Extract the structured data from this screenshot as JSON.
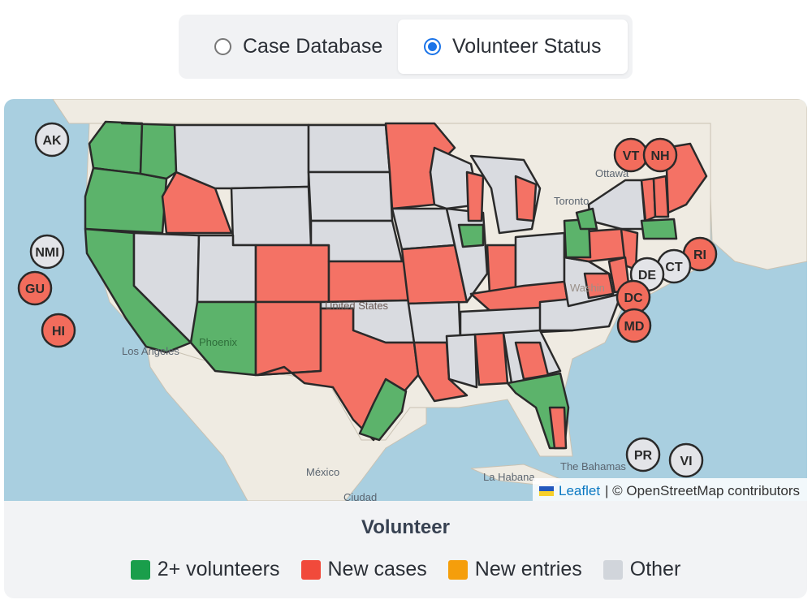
{
  "toggle": {
    "options": [
      {
        "label": "Case Database",
        "selected": false
      },
      {
        "label": "Volunteer Status",
        "selected": true
      }
    ]
  },
  "map": {
    "places": {
      "ottawa": "Ottawa",
      "toronto": "Toronto",
      "phoenix": "Phoenix",
      "losangeles": "Los Angeles",
      "unitedstates": "United States",
      "washington": "Washin",
      "mexico": "México",
      "ciudad": "Ciudad",
      "lahabana": "La Habana",
      "bahamas": "The Bahamas"
    },
    "attribution": {
      "leaflet": "Leaflet",
      "osm": "| © OpenStreetMap contributors"
    },
    "colors": {
      "green": "#5cb36b",
      "red": "#f47265",
      "gray": "#d9dbe0",
      "water": "#a9cfe0",
      "land": "#efebe2"
    },
    "markers": [
      {
        "label": "AK",
        "status": "other"
      },
      {
        "label": "NMI",
        "status": "other"
      },
      {
        "label": "GU",
        "status": "new-cases"
      },
      {
        "label": "HI",
        "status": "new-cases"
      },
      {
        "label": "VT",
        "status": "new-cases"
      },
      {
        "label": "NH",
        "status": "new-cases"
      },
      {
        "label": "RI",
        "status": "new-cases"
      },
      {
        "label": "CT",
        "status": "other"
      },
      {
        "label": "DE",
        "status": "other"
      },
      {
        "label": "DC",
        "status": "new-cases"
      },
      {
        "label": "MD",
        "status": "new-cases"
      },
      {
        "label": "PR",
        "status": "other"
      },
      {
        "label": "VI",
        "status": "other"
      }
    ]
  },
  "legend": {
    "title": "Volunteer",
    "items": [
      {
        "label": "2+ volunteers",
        "color": "#1a9e4b"
      },
      {
        "label": "New cases",
        "color": "#f14a3b"
      },
      {
        "label": "New entries",
        "color": "#f59e0b"
      },
      {
        "label": "Other",
        "color": "#d1d5db"
      }
    ]
  }
}
